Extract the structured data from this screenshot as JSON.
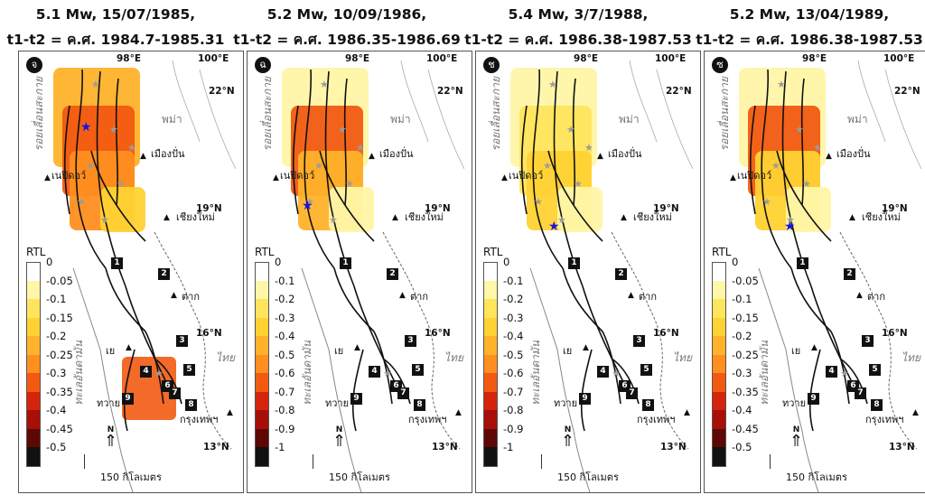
{
  "panels": [
    {
      "title_line1": "5.1 Mw, 15/07/1985,",
      "title_line2": "t1-t2 = ค.ศ. 1984.7-1985.31",
      "letter": "จ",
      "legend_title": "RTL",
      "legend_values": [
        "0",
        "-0.05",
        "-0.1",
        "-0.15",
        "-0.2",
        "-0.25",
        "-0.3",
        "-0.35",
        "-0.4",
        "-0.45",
        "-0.5"
      ],
      "legend_colors": [
        "#ffffff",
        "#fff6a8",
        "#ffe55c",
        "#ffd233",
        "#ffb22a",
        "#ff8f1f",
        "#f25a12",
        "#d4250c",
        "#a80f08",
        "#5e0806",
        "#111111"
      ],
      "blob_colors": [
        "#ffb22a",
        "#f25a12",
        "#ff8f1f",
        "#ffd233"
      ]
    },
    {
      "title_line1": "5.2 Mw, 10/09/1986,",
      "title_line2": "t1-t2 = ค.ศ. 1986.35-1986.69",
      "letter": "ฉ",
      "legend_title": "RTL",
      "legend_values": [
        "0",
        "-0.1",
        "-0.2",
        "-0.3",
        "-0.4",
        "-0.5",
        "-0.6",
        "-0.7",
        "-0.8",
        "-0.9",
        "-1"
      ],
      "legend_colors": [
        "#ffffff",
        "#fff6a8",
        "#ffe55c",
        "#ffd233",
        "#ffb22a",
        "#ff8f1f",
        "#f25a12",
        "#d4250c",
        "#a80f08",
        "#5e0806",
        "#111111"
      ],
      "blob_colors": [
        "#fff6a8",
        "#f25a12",
        "#ffb22a",
        "#fff6a8"
      ]
    },
    {
      "title_line1": "5.4 Mw, 3/7/1988,",
      "title_line2": "t1-t2 = ค.ศ. 1986.38-1987.53",
      "letter": "ช",
      "legend_title": "RTL",
      "legend_values": [
        "0",
        "-0.1",
        "-0.2",
        "-0.3",
        "-0.4",
        "-0.5",
        "-0.6",
        "-0.7",
        "-0.8",
        "-0.9",
        "-1"
      ],
      "legend_colors": [
        "#ffffff",
        "#fff6a8",
        "#ffe55c",
        "#ffd233",
        "#ffb22a",
        "#ff8f1f",
        "#f25a12",
        "#d4250c",
        "#a80f08",
        "#5e0806",
        "#111111"
      ],
      "blob_colors": [
        "#fff6a8",
        "#ffe55c",
        "#ffd233",
        "#fff6a8"
      ]
    },
    {
      "title_line1": "5.2 Mw, 13/04/1989,",
      "title_line2": "t1-t2 = ค.ศ. 1986.38-1987.53",
      "letter": "ซ",
      "legend_title": "RTL",
      "legend_values": [
        "0",
        "-0.05",
        "-0.1",
        "-0.15",
        "-0.2",
        "-0.25",
        "-0.3",
        "-0.35",
        "-0.4",
        "-0.45",
        "-0.5"
      ],
      "legend_colors": [
        "#ffffff",
        "#fff6a8",
        "#ffe55c",
        "#ffd233",
        "#ffb22a",
        "#ff8f1f",
        "#f25a12",
        "#d4250c",
        "#a80f08",
        "#5e0806",
        "#111111"
      ],
      "blob_colors": [
        "#fff6a8",
        "#f25a12",
        "#ffd233",
        "#fff6a8"
      ]
    }
  ],
  "map_labels": {
    "lon_98": "98°E",
    "lon_100": "100°E",
    "lat_22": "22°N",
    "lat_19": "19°N",
    "lat_16": "16°N",
    "lat_13": "13°N",
    "fault_1": "รอยเลื่อนสะกาย",
    "fault_2": "ทะเลอันดามัน",
    "country_myanmar": "พม่า",
    "country_thai": "ไทย",
    "city_mueangpan": "เมืองปั่น",
    "city_naypyidaw": "เนปิดอว์",
    "city_chiangmai": "เชียงใหม่",
    "city_tak": "ตาก",
    "city_ye": "เย",
    "city_tavoy": "ทวาย",
    "city_bangkok": "กรุงเทพฯ",
    "scale": "150 กิโลเมตร",
    "north": "N"
  },
  "site_numbers": [
    "1",
    "2",
    "3",
    "4",
    "5",
    "6",
    "7",
    "8",
    "9"
  ]
}
